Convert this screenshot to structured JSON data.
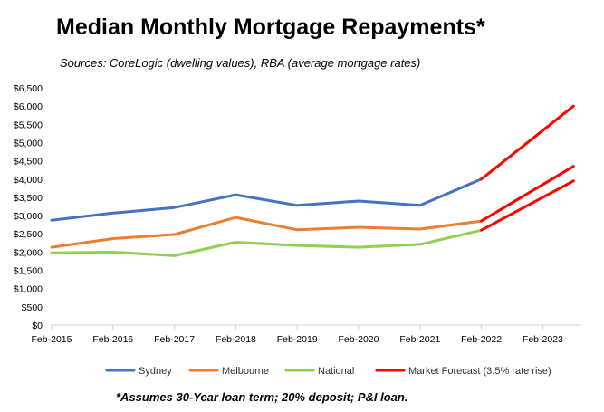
{
  "chart_data": {
    "type": "line",
    "title": "Median Monthly Mortgage Repayments*",
    "subtitle": "Sources: CoreLogic (dwelling values), RBA (average mortgage rates)",
    "footnote": "*Assumes 30-Year loan term; 20% deposit; P&I loan.",
    "categories": [
      "Feb-2015",
      "Feb-2016",
      "Feb-2017",
      "Feb-2018",
      "Feb-2019",
      "Feb-2020",
      "Feb-2021",
      "Feb-2022",
      "Feb-2023"
    ],
    "y_ticks": [
      "$0",
      "$500",
      "$1,000",
      "$1,500",
      "$2,000",
      "$2,500",
      "$3,000",
      "$3,500",
      "$4,000",
      "$4,500",
      "$5,000",
      "$5,500",
      "$6,000",
      "$6,500"
    ],
    "ylim": [
      0,
      6500
    ],
    "grid": false,
    "legend_position": "bottom",
    "series": [
      {
        "name": "Sydney",
        "color": "#4472C4",
        "x": [
          0,
          1,
          2,
          3,
          4,
          5,
          6,
          7
        ],
        "values": [
          2870,
          3070,
          3220,
          3570,
          3280,
          3400,
          3280,
          4000
        ]
      },
      {
        "name": "Melbourne",
        "color": "#ED7D31",
        "x": [
          0,
          1,
          2,
          3,
          4,
          5,
          6,
          7
        ],
        "values": [
          2130,
          2370,
          2480,
          2950,
          2610,
          2680,
          2630,
          2850
        ]
      },
      {
        "name": "National",
        "color": "#92D050",
        "x": [
          0,
          1,
          2,
          3,
          4,
          5,
          6,
          7
        ],
        "values": [
          1980,
          2000,
          1900,
          2270,
          2180,
          2130,
          2210,
          2600
        ]
      },
      {
        "name": "Market Forecast (3.5% rate rise)",
        "color": "#FF0000",
        "segments": [
          {
            "x": [
              7,
              8.5
            ],
            "values": [
              4000,
              6000
            ]
          },
          {
            "x": [
              7,
              8.5
            ],
            "values": [
              2850,
              4350
            ]
          },
          {
            "x": [
              7,
              8.5
            ],
            "values": [
              2600,
              3950
            ]
          }
        ]
      }
    ]
  }
}
